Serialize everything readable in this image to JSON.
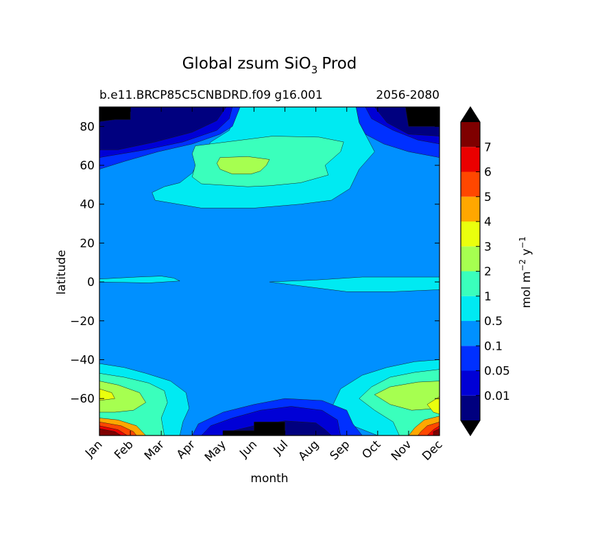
{
  "chart_data": {
    "type": "filled-contour",
    "title_main": "Global zsum SiO",
    "title_sub": "3",
    "title_tail": "Prod",
    "subtitle_left": "b.e11.BRCP85C5CNBDRD.f09 g16.001",
    "subtitle_right": "2056-2080",
    "xlabel": "month",
    "ylabel": "latitude",
    "x_ticks": [
      "Jan",
      "Feb",
      "Mar",
      "Apr",
      "May",
      "Jun",
      "Jul",
      "Aug",
      "Sep",
      "Oct",
      "Nov",
      "Dec"
    ],
    "x_range": [
      0,
      11
    ],
    "ylim": [
      -79,
      90
    ],
    "y_ticks": [
      80,
      60,
      40,
      20,
      0,
      -20,
      -40,
      -60
    ],
    "y_tick_labels": [
      "80",
      "60",
      "40",
      "20",
      "0",
      "−20",
      "−40",
      "−60"
    ],
    "colorbar": {
      "label_main": "mol m",
      "label_exp1": "−2",
      "label_mid": " y",
      "label_exp2": "−1",
      "levels": [
        0,
        0.01,
        0.05,
        0.1,
        0.5,
        1,
        2,
        3,
        4,
        5,
        6,
        7,
        8
      ],
      "tick_labels": [
        "0.01",
        "0.05",
        "0.1",
        "0.5",
        "1",
        "2",
        "3",
        "4",
        "5",
        "6",
        "7"
      ],
      "colors": [
        "#00007f",
        "#0000d6",
        "#0030ff",
        "#0090ff",
        "#00eaf2",
        "#3affbc",
        "#a6ff50",
        "#eaff0d",
        "#ffa700",
        "#ff4700",
        "#ea0000",
        "#7f0000"
      ],
      "extend_min_color": "#000000",
      "extend_max_color": "#000000"
    },
    "contours": [
      {
        "level_index": 3,
        "note": "background 0.1-0.5 field",
        "points": [
          [
            0,
            90
          ],
          [
            11,
            90
          ],
          [
            11,
            -79
          ],
          [
            0,
            -79
          ]
        ]
      },
      {
        "level_index": 4,
        "region": "north",
        "points": [
          [
            4.5,
            90
          ],
          [
            8.3,
            90
          ],
          [
            8.4,
            82
          ],
          [
            8.6,
            76
          ],
          [
            8.9,
            67
          ],
          [
            8.4,
            58
          ],
          [
            8.1,
            48
          ],
          [
            7.5,
            42
          ],
          [
            6.5,
            40
          ],
          [
            5.0,
            38
          ],
          [
            3.3,
            38
          ],
          [
            1.8,
            42
          ],
          [
            1.7,
            46
          ],
          [
            2.1,
            49
          ],
          [
            2.6,
            51
          ],
          [
            3.0,
            56
          ],
          [
            3.2,
            62
          ],
          [
            3.4,
            67
          ],
          [
            3.6,
            72
          ],
          [
            4.2,
            78
          ],
          [
            4.4,
            86
          ]
        ]
      },
      {
        "level_index": 5,
        "region": "north",
        "points": [
          [
            3.1,
            70
          ],
          [
            4.1,
            72
          ],
          [
            5.6,
            75
          ],
          [
            7.1,
            74.5
          ],
          [
            7.9,
            72
          ],
          [
            7.8,
            67
          ],
          [
            7.3,
            60
          ],
          [
            7.4,
            55
          ],
          [
            6.5,
            51
          ],
          [
            5.5,
            49.5
          ],
          [
            4.8,
            49
          ],
          [
            3.3,
            50.5
          ],
          [
            3.0,
            54
          ],
          [
            3.1,
            60
          ],
          [
            3.0,
            66
          ]
        ]
      },
      {
        "level_index": 6,
        "region": "north",
        "points": [
          [
            3.9,
            64
          ],
          [
            4.8,
            64.5
          ],
          [
            5.5,
            63
          ],
          [
            5.4,
            60
          ],
          [
            5.2,
            57
          ],
          [
            4.9,
            55.5
          ],
          [
            4.3,
            55.5
          ],
          [
            3.9,
            58
          ],
          [
            3.8,
            61
          ]
        ]
      },
      {
        "level_index": 4,
        "region": "equator-left",
        "points": [
          [
            0,
            1.5
          ],
          [
            1.2,
            2.5
          ],
          [
            2.0,
            3
          ],
          [
            2.4,
            2
          ],
          [
            2.6,
            0.5
          ],
          [
            1.6,
            -0.5
          ],
          [
            0,
            0
          ]
        ]
      },
      {
        "level_index": 4,
        "region": "equator-right",
        "points": [
          [
            5.5,
            0
          ],
          [
            7.0,
            1
          ],
          [
            8.5,
            2.5
          ],
          [
            11,
            2.5
          ],
          [
            11,
            -4
          ],
          [
            9.5,
            -5
          ],
          [
            8.0,
            -5
          ],
          [
            6.5,
            -2
          ]
        ]
      },
      {
        "level_index": 4,
        "region": "south-left",
        "points": [
          [
            0,
            -42
          ],
          [
            0.8,
            -44
          ],
          [
            1.5,
            -47
          ],
          [
            2.3,
            -51
          ],
          [
            2.8,
            -57
          ],
          [
            2.9,
            -65
          ],
          [
            2.7,
            -72
          ],
          [
            2.6,
            -79
          ],
          [
            0,
            -79
          ]
        ]
      },
      {
        "level_index": 4,
        "region": "south-right",
        "points": [
          [
            11,
            -40
          ],
          [
            10.2,
            -41
          ],
          [
            9.3,
            -44
          ],
          [
            8.5,
            -48
          ],
          [
            7.8,
            -55
          ],
          [
            7.5,
            -65
          ],
          [
            8.2,
            -74
          ],
          [
            9.0,
            -79
          ],
          [
            11,
            -79
          ]
        ]
      },
      {
        "level_index": 5,
        "region": "south-left",
        "points": [
          [
            0,
            -47
          ],
          [
            0.8,
            -49
          ],
          [
            1.6,
            -52
          ],
          [
            2.1,
            -56
          ],
          [
            2.2,
            -62
          ],
          [
            2.0,
            -70
          ],
          [
            2.1,
            -79
          ],
          [
            0,
            -79
          ]
        ]
      },
      {
        "level_index": 5,
        "region": "south-right",
        "points": [
          [
            11,
            -45
          ],
          [
            10.2,
            -46.5
          ],
          [
            9.4,
            -49
          ],
          [
            8.8,
            -54
          ],
          [
            8.4,
            -60
          ],
          [
            8.9,
            -66
          ],
          [
            9.5,
            -72
          ],
          [
            9.7,
            -79
          ],
          [
            11,
            -79
          ]
        ]
      },
      {
        "level_index": 6,
        "region": "south-left",
        "points": [
          [
            0,
            -51
          ],
          [
            0.6,
            -53
          ],
          [
            1.3,
            -57
          ],
          [
            1.5,
            -62
          ],
          [
            1.1,
            -66
          ],
          [
            0.5,
            -67
          ],
          [
            0,
            -67
          ]
        ]
      },
      {
        "level_index": 6,
        "region": "south-right",
        "points": [
          [
            11,
            -51
          ],
          [
            10.3,
            -51.5
          ],
          [
            9.4,
            -54
          ],
          [
            8.9,
            -58
          ],
          [
            9.4,
            -63
          ],
          [
            10.1,
            -66
          ],
          [
            11,
            -65
          ]
        ]
      },
      {
        "level_index": 7,
        "region": "south-left",
        "points": [
          [
            0,
            -55
          ],
          [
            0.4,
            -57
          ],
          [
            0.5,
            -60
          ],
          [
            0,
            -61
          ]
        ]
      },
      {
        "level_index": 7,
        "region": "south-right",
        "points": [
          [
            11,
            -59
          ],
          [
            10.6,
            -63
          ],
          [
            10.8,
            -67
          ],
          [
            11,
            -68
          ]
        ]
      },
      {
        "level_index": 8,
        "region": "south-left",
        "points": [
          [
            0,
            -70
          ],
          [
            0.6,
            -71
          ],
          [
            1.2,
            -74
          ],
          [
            1.5,
            -79
          ],
          [
            0,
            -79
          ]
        ]
      },
      {
        "level_index": 8,
        "region": "south-right",
        "points": [
          [
            11,
            -69
          ],
          [
            10.5,
            -71
          ],
          [
            10.2,
            -75
          ],
          [
            10.0,
            -79
          ],
          [
            11,
            -79
          ]
        ]
      },
      {
        "level_index": 9,
        "region": "south-left",
        "points": [
          [
            0,
            -72
          ],
          [
            0.7,
            -74
          ],
          [
            1.1,
            -77
          ],
          [
            1.2,
            -79
          ],
          [
            0,
            -79
          ]
        ]
      },
      {
        "level_index": 9,
        "region": "south-right",
        "points": [
          [
            11,
            -72
          ],
          [
            10.6,
            -74
          ],
          [
            10.4,
            -77
          ],
          [
            10.3,
            -79
          ],
          [
            11,
            -79
          ]
        ]
      },
      {
        "level_index": 10,
        "region": "south-left",
        "points": [
          [
            0,
            -74
          ],
          [
            0.6,
            -76
          ],
          [
            0.9,
            -79
          ],
          [
            0,
            -79
          ]
        ]
      },
      {
        "level_index": 10,
        "region": "south-right",
        "points": [
          [
            11,
            -74
          ],
          [
            10.8,
            -76
          ],
          [
            10.6,
            -79
          ],
          [
            11,
            -79
          ]
        ]
      },
      {
        "level_index": 11,
        "region": "south-left",
        "points": [
          [
            0,
            -75.5
          ],
          [
            0.5,
            -77
          ],
          [
            0.7,
            -79
          ],
          [
            0,
            -79
          ]
        ]
      },
      {
        "level_index": 11,
        "region": "south-right",
        "points": [
          [
            11,
            -75.5
          ],
          [
            10.8,
            -77
          ],
          [
            10.8,
            -79
          ],
          [
            11,
            -79
          ]
        ]
      },
      {
        "level_index": 2,
        "region": "north-cap",
        "points": [
          [
            0,
            90
          ],
          [
            4.55,
            90
          ],
          [
            4.45,
            86
          ],
          [
            4.3,
            80
          ],
          [
            3.9,
            76
          ],
          [
            3.0,
            71
          ],
          [
            1.9,
            67
          ],
          [
            0.8,
            62
          ],
          [
            0,
            58
          ]
        ]
      },
      {
        "level_index": 2,
        "region": "north-cap-right",
        "points": [
          [
            11,
            90
          ],
          [
            8.3,
            90
          ],
          [
            8.4,
            82
          ],
          [
            8.6,
            76
          ],
          [
            9.2,
            71
          ],
          [
            10.0,
            67
          ],
          [
            11,
            64
          ]
        ]
      },
      {
        "level_index": 1,
        "region": "north-cap",
        "points": [
          [
            0,
            90
          ],
          [
            4.3,
            90
          ],
          [
            4.2,
            84
          ],
          [
            3.8,
            78
          ],
          [
            2.7,
            72
          ],
          [
            1.5,
            68
          ],
          [
            0,
            64
          ]
        ]
      },
      {
        "level_index": 1,
        "region": "north-cap-right",
        "points": [
          [
            11,
            90
          ],
          [
            8.6,
            90
          ],
          [
            8.8,
            84
          ],
          [
            9.5,
            78
          ],
          [
            10.3,
            73
          ],
          [
            11,
            71
          ]
        ]
      },
      {
        "level_index": 0,
        "region": "north-cap",
        "points": [
          [
            0,
            90
          ],
          [
            4.1,
            90
          ],
          [
            3.8,
            83
          ],
          [
            3.0,
            77
          ],
          [
            1.8,
            72
          ],
          [
            0.6,
            68
          ],
          [
            0,
            68
          ]
        ]
      },
      {
        "level_index": 0,
        "region": "north-cap-right",
        "points": [
          [
            11,
            90
          ],
          [
            8.9,
            90
          ],
          [
            9.3,
            82
          ],
          [
            10.0,
            76
          ],
          [
            11,
            75
          ]
        ]
      },
      {
        "level_index": -1,
        "region": "north-cap-black",
        "points": [
          [
            0,
            90
          ],
          [
            1.0,
            90
          ],
          [
            1.0,
            83.5
          ],
          [
            0.5,
            83.5
          ],
          [
            0,
            82.5
          ]
        ]
      },
      {
        "level_index": -1,
        "region": "north-cap-black-right",
        "points": [
          [
            11,
            90
          ],
          [
            9.9,
            90
          ],
          [
            10.0,
            80
          ],
          [
            11,
            80
          ]
        ]
      },
      {
        "level_index": 2,
        "region": "south-cap",
        "points": [
          [
            3.0,
            -79
          ],
          [
            3.2,
            -73
          ],
          [
            4.0,
            -67
          ],
          [
            5.0,
            -63
          ],
          [
            6.0,
            -60
          ],
          [
            7.2,
            -61
          ],
          [
            8.0,
            -66
          ],
          [
            8.2,
            -73
          ],
          [
            8.5,
            -79
          ]
        ]
      },
      {
        "level_index": 1,
        "region": "south-cap",
        "points": [
          [
            3.3,
            -79
          ],
          [
            3.6,
            -74
          ],
          [
            4.3,
            -70
          ],
          [
            5.2,
            -66
          ],
          [
            6.2,
            -64
          ],
          [
            7.2,
            -66
          ],
          [
            7.7,
            -71
          ],
          [
            7.8,
            -79
          ]
        ]
      },
      {
        "level_index": 0,
        "region": "south-cap",
        "points": [
          [
            4.0,
            -79
          ],
          [
            4.2,
            -77
          ],
          [
            5.0,
            -74
          ],
          [
            6.0,
            -71.5
          ],
          [
            7.0,
            -72.5
          ],
          [
            7.3,
            -76
          ],
          [
            7.5,
            -79
          ]
        ]
      },
      {
        "level_index": -1,
        "region": "south-cap-black",
        "points": [
          [
            4.0,
            -79
          ],
          [
            4.0,
            -76.5
          ],
          [
            5.0,
            -76.5
          ],
          [
            5.0,
            -72
          ],
          [
            6.0,
            -72
          ],
          [
            6.0,
            -79
          ]
        ]
      }
    ]
  }
}
